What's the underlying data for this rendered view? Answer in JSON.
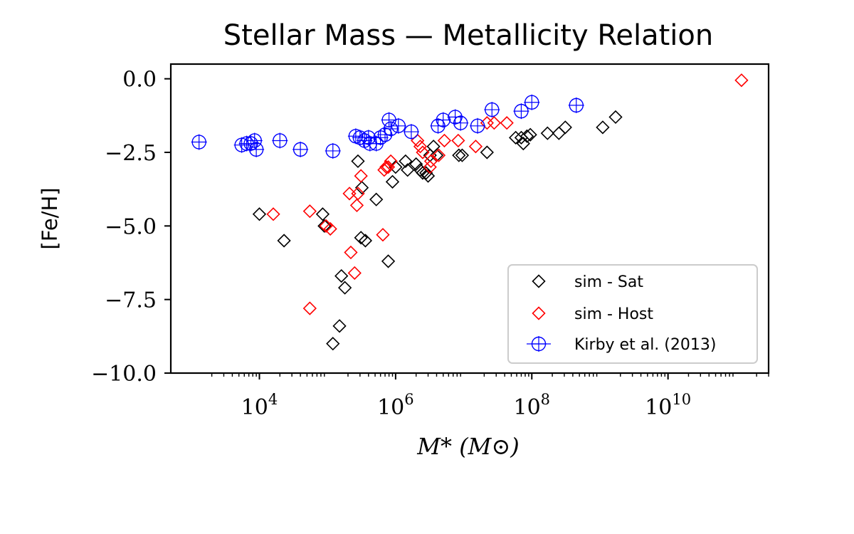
{
  "chart_data": {
    "type": "scatter",
    "title": "Stellar Mass — Metallicity Relation",
    "xlabel": "M* (M⊙)",
    "ylabel": "[Fe/H]",
    "xscale": "log",
    "xlim": [
      500,
      300000000000
    ],
    "ylim": [
      -10.0,
      0.5
    ],
    "xtick_labels": [
      "10^4",
      "10^6",
      "10^8",
      "10^10"
    ],
    "xtick_values": [
      10000,
      1000000,
      100000000,
      10000000000
    ],
    "ytick_labels": [
      "0.0",
      "−2.5",
      "−5.0",
      "−7.5",
      "−10.0"
    ],
    "ytick_values": [
      0.0,
      -2.5,
      -5.0,
      -7.5,
      -10.0
    ],
    "grid": false,
    "legend_position": "lower right",
    "series": [
      {
        "name": "sim - Sat",
        "marker": "diamond",
        "color": "#000000",
        "points": [
          [
            10000,
            -4.6
          ],
          [
            23000,
            -5.5
          ],
          [
            85000,
            -4.6
          ],
          [
            90000,
            -5.0
          ],
          [
            120000,
            -9.0
          ],
          [
            150000,
            -8.4
          ],
          [
            160000,
            -6.7
          ],
          [
            180000,
            -7.1
          ],
          [
            280000,
            -2.8
          ],
          [
            320000,
            -3.7
          ],
          [
            310000,
            -5.4
          ],
          [
            360000,
            -5.5
          ],
          [
            520000,
            -4.1
          ],
          [
            780000,
            -6.2
          ],
          [
            900000,
            -3.5
          ],
          [
            1000000,
            -3.0
          ],
          [
            1400000,
            -2.8
          ],
          [
            1500000,
            -3.1
          ],
          [
            2000000,
            -2.9
          ],
          [
            2300000,
            -3.1
          ],
          [
            2500000,
            -3.2
          ],
          [
            2800000,
            -3.2
          ],
          [
            3000000,
            -3.3
          ],
          [
            3200000,
            -2.6
          ],
          [
            3600000,
            -2.3
          ],
          [
            4000000,
            -2.6
          ],
          [
            8500000,
            -2.6
          ],
          [
            9500000,
            -2.6
          ],
          [
            22000000,
            -2.5
          ],
          [
            58000000,
            -2.0
          ],
          [
            70000000,
            -2.0
          ],
          [
            75000000,
            -2.2
          ],
          [
            85000000,
            -1.95
          ],
          [
            95000000,
            -1.9
          ],
          [
            170000000,
            -1.85
          ],
          [
            250000000,
            -1.85
          ],
          [
            310000000,
            -1.65
          ],
          [
            1100000000,
            -1.65
          ],
          [
            1700000000,
            -1.3
          ]
        ]
      },
      {
        "name": "sim - Host",
        "marker": "diamond",
        "color": "#ff0000",
        "points": [
          [
            16000,
            -4.6
          ],
          [
            55000,
            -4.5
          ],
          [
            55000,
            -7.8
          ],
          [
            95000,
            -5.0
          ],
          [
            110000,
            -5.1
          ],
          [
            210000,
            -3.9
          ],
          [
            220000,
            -5.9
          ],
          [
            250000,
            -6.6
          ],
          [
            270000,
            -4.3
          ],
          [
            280000,
            -3.9
          ],
          [
            310000,
            -3.3
          ],
          [
            650000,
            -5.3
          ],
          [
            680000,
            -3.1
          ],
          [
            730000,
            -3.0
          ],
          [
            780000,
            -3.0
          ],
          [
            850000,
            -2.8
          ],
          [
            2100000,
            -2.1
          ],
          [
            2300000,
            -2.3
          ],
          [
            2500000,
            -2.5
          ],
          [
            3200000,
            -3.0
          ],
          [
            3300000,
            -2.8
          ],
          [
            4300000,
            -2.6
          ],
          [
            5200000,
            -2.1
          ],
          [
            8300000,
            -2.1
          ],
          [
            15000000,
            -2.3
          ],
          [
            22000000,
            -1.5
          ],
          [
            28000000,
            -1.5
          ],
          [
            43000000,
            -1.5
          ],
          [
            120000000000,
            -0.05
          ]
        ]
      },
      {
        "name": "Kirby et al. (2013)",
        "marker": "circle-plus",
        "color": "#0000ff",
        "points": [
          [
            1300,
            -2.15
          ],
          [
            5500,
            -2.25
          ],
          [
            6500,
            -2.2
          ],
          [
            7500,
            -2.2
          ],
          [
            8500,
            -2.1
          ],
          [
            9000,
            -2.4
          ],
          [
            20000,
            -2.1
          ],
          [
            40000,
            -2.4
          ],
          [
            120000,
            -2.45
          ],
          [
            260000,
            -1.95
          ],
          [
            300000,
            -2.0
          ],
          [
            350000,
            -2.1
          ],
          [
            400000,
            -2.0
          ],
          [
            420000,
            -2.2
          ],
          [
            520000,
            -2.2
          ],
          [
            600000,
            -2.0
          ],
          [
            700000,
            -1.9
          ],
          [
            800000,
            -1.4
          ],
          [
            850000,
            -1.7
          ],
          [
            1100000,
            -1.6
          ],
          [
            1700000,
            -1.8
          ],
          [
            4200000,
            -1.6
          ],
          [
            5000000,
            -1.4
          ],
          [
            7500000,
            -1.3
          ],
          [
            9000000,
            -1.5
          ],
          [
            16000000,
            -1.6
          ],
          [
            26000000,
            -1.05
          ],
          [
            70000000,
            -1.1
          ],
          [
            100000000,
            -0.8
          ],
          [
            450000000,
            -0.9
          ]
        ]
      }
    ]
  }
}
